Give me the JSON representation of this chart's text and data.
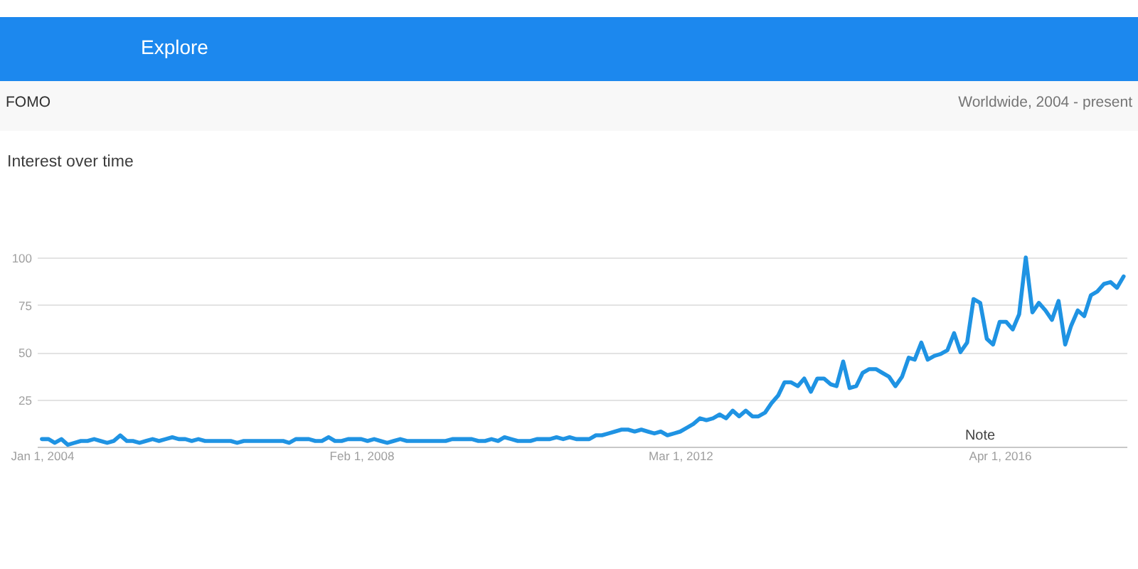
{
  "chart_data": {
    "type": "line",
    "title": "Interest over time",
    "annotations": [
      "Explore",
      "FOMO",
      "Worldwide, 2004 - present",
      "Note"
    ],
    "x": [
      "2004-01",
      "2004-02",
      "2004-03",
      "2004-04",
      "2004-05",
      "2004-06",
      "2004-07",
      "2004-08",
      "2004-09",
      "2004-10",
      "2004-11",
      "2004-12",
      "2005-01",
      "2005-02",
      "2005-03",
      "2005-04",
      "2005-05",
      "2005-06",
      "2005-07",
      "2005-08",
      "2005-09",
      "2005-10",
      "2005-11",
      "2005-12",
      "2006-01",
      "2006-02",
      "2006-03",
      "2006-06",
      "2006-07",
      "2006-08",
      "2007-02",
      "2007-03",
      "2007-04",
      "2007-06",
      "2007-07",
      "2007-08",
      "2007-09",
      "2007-10",
      "2007-11",
      "2007-12",
      "2008-02",
      "2008-03",
      "2008-04",
      "2008-05",
      "2008-06",
      "2008-07",
      "2008-08",
      "2008-09",
      "2009-03",
      "2009-04",
      "2009-07",
      "2009-08",
      "2009-09",
      "2009-10",
      "2009-11",
      "2009-12",
      "2010-01",
      "2010-02",
      "2010-04",
      "2010-05",
      "2010-07",
      "2010-08",
      "2010-09",
      "2010-10",
      "2010-11",
      "2011-01",
      "2011-02",
      "2011-03",
      "2011-04",
      "2011-05",
      "2011-06",
      "2011-07",
      "2011-08",
      "2011-09",
      "2011-10",
      "2011-11",
      "2011-12",
      "2012-01",
      "2012-02",
      "2012-03",
      "2012-04",
      "2012-05",
      "2012-06",
      "2012-07",
      "2012-08",
      "2012-09",
      "2012-10",
      "2012-11",
      "2012-12",
      "2013-01",
      "2013-02",
      "2013-03",
      "2013-04",
      "2013-05",
      "2013-06",
      "2013-07",
      "2013-08",
      "2013-09",
      "2013-10",
      "2013-11",
      "2013-12",
      "2014-01",
      "2014-02",
      "2014-03",
      "2014-04",
      "2014-05",
      "2014-06",
      "2014-07",
      "2014-08",
      "2014-09",
      "2014-10",
      "2014-11",
      "2014-12",
      "2015-01",
      "2015-02",
      "2015-03",
      "2015-04",
      "2015-05",
      "2015-06",
      "2015-07",
      "2015-08",
      "2015-09",
      "2015-10",
      "2015-11",
      "2015-12",
      "2016-01",
      "2016-02",
      "2016-03",
      "2016-04",
      "2016-05",
      "2016-06",
      "2016-07",
      "2016-08",
      "2016-09",
      "2016-10",
      "2016-11",
      "2016-12",
      "2017-01",
      "2017-02",
      "2017-03",
      "2017-04",
      "2017-05",
      "2017-06",
      "2017-07",
      "2017-08",
      "2017-09",
      "2017-10",
      "2017-11"
    ],
    "series": [
      {
        "color": "#1f93e3",
        "values": [
          4,
          4,
          2,
          4,
          1,
          2,
          3,
          3,
          4,
          3,
          2,
          3,
          6,
          3,
          3,
          2,
          3,
          4,
          3,
          4,
          5,
          4,
          4,
          3,
          4,
          3,
          3,
          3,
          2,
          3,
          3,
          2,
          4,
          4,
          3,
          3,
          5,
          3,
          3,
          4,
          4,
          3,
          4,
          3,
          2,
          3,
          4,
          3,
          3,
          4,
          4,
          3,
          3,
          4,
          3,
          5,
          4,
          3,
          3,
          4,
          4,
          5,
          4,
          5,
          4,
          4,
          6,
          6,
          7,
          8,
          9,
          9,
          8,
          9,
          8,
          7,
          8,
          6,
          7,
          8,
          10,
          12,
          15,
          14,
          15,
          17,
          15,
          19,
          16,
          19,
          16,
          16,
          18,
          23,
          27,
          34,
          34,
          32,
          36,
          29,
          36,
          36,
          33,
          32,
          45,
          31,
          32,
          39,
          41,
          41,
          39,
          37,
          32,
          37,
          47,
          46,
          55,
          46,
          48,
          49,
          51,
          60,
          50,
          55,
          78,
          76,
          57,
          54,
          66,
          66,
          62,
          70,
          100,
          71,
          76,
          72,
          67,
          77,
          54,
          64,
          72,
          69,
          80,
          82,
          86,
          87,
          84,
          90
        ]
      }
    ],
    "xlim": [
      "2003-12-09",
      "2017-11-15"
    ],
    "xticks": [
      {
        "value": "2004-01-01",
        "label": "Jan 1, 2004"
      },
      {
        "value": "2008-02-01",
        "label": "Feb 1, 2008"
      },
      {
        "value": "2012-03-01",
        "label": "Mar 1, 2012"
      },
      {
        "value": "2016-04-01",
        "label": "Apr 1, 2016"
      }
    ],
    "ylim": [
      0,
      100
    ],
    "yticks": [
      25,
      50,
      75,
      100
    ],
    "grid": "y",
    "line_style": "solid"
  }
}
